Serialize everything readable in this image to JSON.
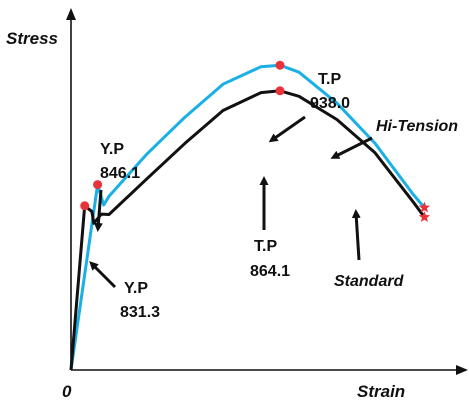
{
  "chart_data": {
    "type": "line",
    "xlabel": "Strain",
    "ylabel": "Stress",
    "origin_label": "0",
    "xlim": [
      0,
      1
    ],
    "ylim": [
      0,
      1
    ],
    "grid": false,
    "series": [
      {
        "name": "Hi-Tension",
        "color": "#1ab0e6",
        "end_marker": "star",
        "x": [
          0,
          0.07,
          0.086,
          0.1,
          0.2,
          0.3,
          0.4,
          0.5,
          0.55,
          0.6,
          0.7,
          0.8,
          0.9,
          0.93
        ],
        "y": [
          0,
          0.508,
          0.452,
          0.476,
          0.592,
          0.693,
          0.783,
          0.831,
          0.835,
          0.816,
          0.731,
          0.621,
          0.482,
          0.445
        ]
      },
      {
        "name": "Standard",
        "color": "#111111",
        "end_marker": "star",
        "x": [
          0,
          0.036,
          0.055,
          0.06,
          0.08,
          0.1,
          0.2,
          0.3,
          0.4,
          0.5,
          0.55,
          0.6,
          0.7,
          0.8,
          0.9,
          0.93
        ],
        "y": [
          0,
          0.45,
          0.434,
          0.402,
          0.427,
          0.426,
          0.524,
          0.621,
          0.711,
          0.76,
          0.765,
          0.75,
          0.686,
          0.595,
          0.461,
          0.419
        ]
      }
    ],
    "points": [
      {
        "series": "Hi-Tension",
        "x": 0.07,
        "y": 0.508,
        "label_top": "Y.P",
        "label_bottom": "846.1"
      },
      {
        "series": "Hi-Tension",
        "x": 0.55,
        "y": 0.835,
        "label_top": "T.P",
        "label_bottom": "938.0"
      },
      {
        "series": "Standard",
        "x": 0.036,
        "y": 0.45,
        "label_top": "Y.P",
        "label_bottom": "831.3"
      },
      {
        "series": "Standard",
        "x": 0.55,
        "y": 0.765,
        "label_top": "T.P",
        "label_bottom": "864.1"
      }
    ]
  }
}
